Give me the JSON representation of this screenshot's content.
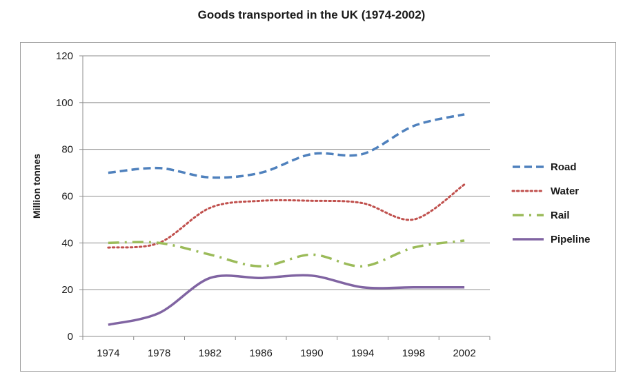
{
  "chart_data": {
    "type": "line",
    "title": "Goods transported in the UK (1974-2002)",
    "xlabel": "",
    "ylabel": "Million tonnes",
    "categories": [
      "1974",
      "1978",
      "1982",
      "1986",
      "1990",
      "1994",
      "1998",
      "2002"
    ],
    "ylim": [
      0,
      120
    ],
    "yticks": [
      0,
      20,
      40,
      60,
      80,
      100,
      120
    ],
    "grid": true,
    "legend_position": "right",
    "series": [
      {
        "name": "Road",
        "values": [
          70,
          72,
          68,
          70,
          78,
          78,
          90,
          95
        ],
        "color": "#4f81bd",
        "style": "dashed"
      },
      {
        "name": "Water",
        "values": [
          38,
          40,
          55,
          58,
          58,
          57,
          50,
          65
        ],
        "color": "#c0504d",
        "style": "dotted"
      },
      {
        "name": "Rail",
        "values": [
          40,
          40,
          35,
          30,
          35,
          30,
          38,
          41
        ],
        "color": "#9bbb59",
        "style": "dash-dot"
      },
      {
        "name": "Pipeline",
        "values": [
          5,
          10,
          25,
          25,
          26,
          21,
          21,
          21
        ],
        "color": "#8064a2",
        "style": "solid"
      }
    ]
  }
}
